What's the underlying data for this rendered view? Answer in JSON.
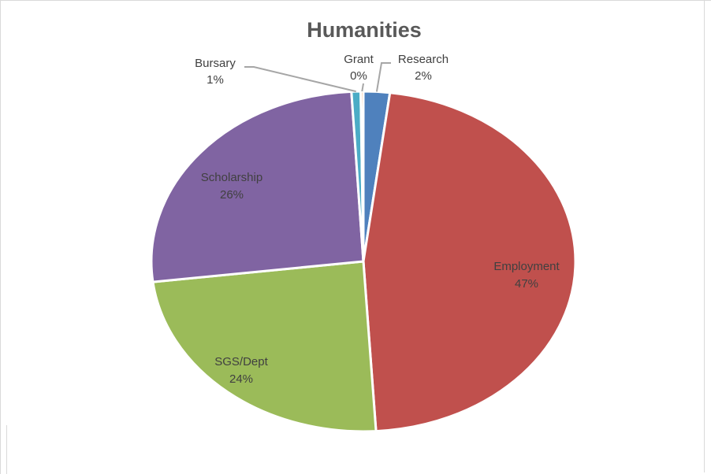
{
  "chart_data": {
    "type": "pie",
    "title": "Humanities",
    "slices": [
      {
        "label": "Research",
        "value": 2,
        "display": "2%",
        "color": "#4f81bd"
      },
      {
        "label": "Employment",
        "value": 47,
        "display": "47%",
        "color": "#c0504d"
      },
      {
        "label": "SGS/Dept",
        "value": 24,
        "display": "24%",
        "color": "#9bbb59"
      },
      {
        "label": "Scholarship",
        "value": 26,
        "display": "26%",
        "color": "#8064a2"
      },
      {
        "label": "Bursary",
        "value": 0.7,
        "display": "1%",
        "color": "#4bacc6"
      },
      {
        "label": "Grant",
        "value": 0.2,
        "display": "0%",
        "color": "#f79646"
      }
    ],
    "legend": "none"
  }
}
